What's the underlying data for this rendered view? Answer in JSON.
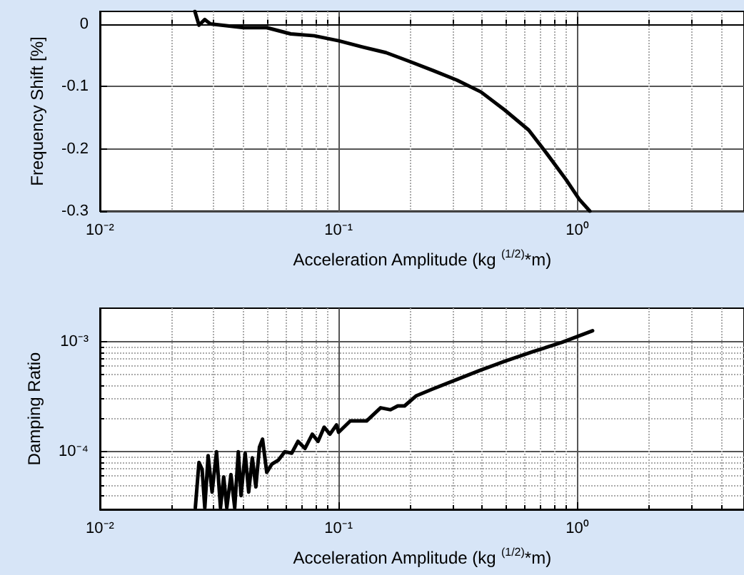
{
  "chart_data": [
    {
      "type": "line",
      "xlabel": "Acceleration Amplitude (kg $^{(1/2)}$*m)",
      "ylabel": "Frequency Shift [%]",
      "log": "x",
      "grid": true,
      "marker": "none",
      "line_style": "solid",
      "xlim": [
        0.01,
        5
      ],
      "xticks": [
        {
          "value": 0.01,
          "label": "10⁻²"
        },
        {
          "value": 0.1,
          "label": "10⁻¹"
        },
        {
          "value": 1,
          "label": "10⁰"
        }
      ],
      "ylim": [
        -0.3,
        0.02
      ],
      "yticks": [
        0,
        -0.1,
        -0.2,
        -0.3
      ],
      "series": [
        {
          "color": "#000000",
          "x": [
            0.025,
            0.026,
            0.0275,
            0.029,
            0.04,
            0.05,
            0.063,
            0.079,
            0.1,
            0.126,
            0.158,
            0.198,
            0.25,
            0.313,
            0.395,
            0.497,
            0.626,
            0.75,
            0.9,
            1.02,
            1.13
          ],
          "values": [
            0.02,
            -0.002,
            0.007,
            0.0,
            -0.006,
            -0.006,
            -0.016,
            -0.019,
            -0.027,
            -0.037,
            -0.046,
            -0.06,
            -0.075,
            -0.09,
            -0.109,
            -0.138,
            -0.17,
            -0.209,
            -0.25,
            -0.281,
            -0.3
          ]
        }
      ]
    },
    {
      "type": "line",
      "xlabel": "Acceleration Amplitude (kg $^{(1/2)}$*m)",
      "ylabel": "Damping Ratio",
      "log": "xy",
      "grid": true,
      "marker": "none",
      "line_style": "solid",
      "xlim": [
        0.01,
        5
      ],
      "xticks": [
        {
          "value": 0.01,
          "label": "10⁻²"
        },
        {
          "value": 0.1,
          "label": "10⁻¹"
        },
        {
          "value": 1,
          "label": "10⁰"
        }
      ],
      "ylim": [
        3e-05,
        0.002
      ],
      "yticks": [
        {
          "value": 0.0001,
          "label": "10⁻⁴"
        },
        {
          "value": 0.001,
          "label": "10⁻³"
        }
      ],
      "series": [
        {
          "color": "#000000",
          "x": [
            0.0251,
            0.026,
            0.0268,
            0.0275,
            0.0284,
            0.0295,
            0.0308,
            0.032,
            0.033,
            0.034,
            0.0354,
            0.0367,
            0.038,
            0.039,
            0.0406,
            0.042,
            0.0435,
            0.045,
            0.0466,
            0.048,
            0.05,
            0.0525,
            0.056,
            0.0595,
            0.0636,
            0.0676,
            0.0723,
            0.0776,
            0.082,
            0.087,
            0.092,
            0.098,
            0.1,
            0.112,
            0.131,
            0.15,
            0.165,
            0.177,
            0.189,
            0.211,
            0.248,
            0.312,
            0.395,
            0.497,
            0.656,
            0.863,
            1.16
          ],
          "values": [
            3.1e-05,
            8e-05,
            6.9e-05,
            3.1e-05,
            9.2e-05,
            4.3e-05,
            0.0001,
            3.1e-05,
            5.9e-05,
            3.1e-05,
            6.2e-05,
            3.1e-05,
            0.0001,
            4e-05,
            9.7e-05,
            4.3e-05,
            8.8e-05,
            4.8e-05,
            0.00011,
            0.00013,
            6.5e-05,
            7.7e-05,
            8.4e-05,
            0.0001,
            9.7e-05,
            0.000124,
            0.000107,
            0.000144,
            0.000124,
            0.000167,
            0.000144,
            0.000175,
            0.00015,
            0.00019,
            0.00019,
            0.00025,
            0.00024,
            0.00026,
            0.00026,
            0.00032,
            0.00037,
            0.00045,
            0.00055,
            0.00066,
            0.00081,
            0.00098,
            0.00125
          ]
        }
      ]
    }
  ]
}
